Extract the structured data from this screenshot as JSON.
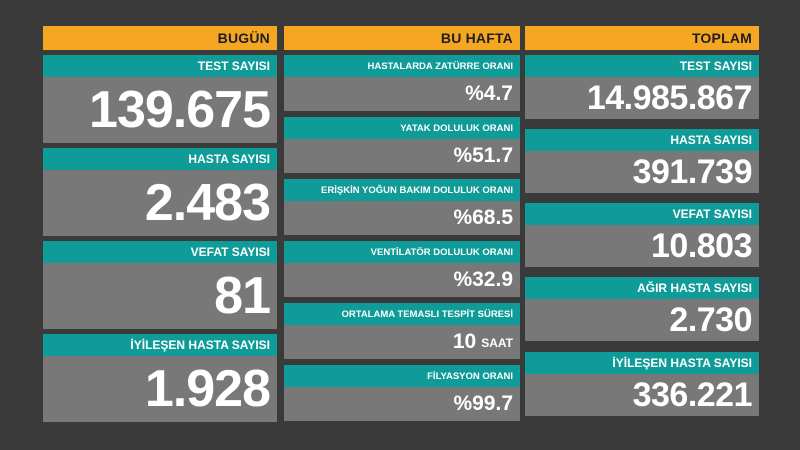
{
  "columns": {
    "today": {
      "header": "BUGÜN",
      "cards": [
        {
          "label": "TEST SAYISI",
          "value": "139.675"
        },
        {
          "label": "HASTA SAYISI",
          "value": "2.483"
        },
        {
          "label": "VEFAT SAYISI",
          "value": "81"
        },
        {
          "label": "İYİLEŞEN HASTA SAYISI",
          "value": "1.928"
        }
      ]
    },
    "week": {
      "header": "BU HAFTA",
      "cards": [
        {
          "label": "HASTALARDA ZATÜRRE ORANI",
          "value": "%4.7"
        },
        {
          "label": "YATAK DOLULUK ORANI",
          "value": "%51.7"
        },
        {
          "label": "ERİŞKİN YOĞUN BAKIM DOLULUK ORANI",
          "value": "%68.5"
        },
        {
          "label": "VENTİLATÖR DOLULUK ORANI",
          "value": "%32.9"
        },
        {
          "label": "ORTALAMA TEMASLI TESPİT SÜRESİ",
          "value": "10",
          "unit": "SAAT"
        },
        {
          "label": "FİLYASYON ORANI",
          "value": "%99.7"
        }
      ]
    },
    "total": {
      "header": "TOPLAM",
      "cards": [
        {
          "label": "TEST SAYISI",
          "value": "14.985.867"
        },
        {
          "label": "HASTA SAYISI",
          "value": "391.739"
        },
        {
          "label": "VEFAT SAYISI",
          "value": "10.803"
        },
        {
          "label": "AĞIR HASTA SAYISI",
          "value": "2.730"
        },
        {
          "label": "İYİLEŞEN HASTA SAYISI",
          "value": "336.221"
        }
      ]
    }
  },
  "colors": {
    "background": "#3a3a3a",
    "header": "#f5a623",
    "label": "#0f9b97",
    "value": "#787878"
  }
}
